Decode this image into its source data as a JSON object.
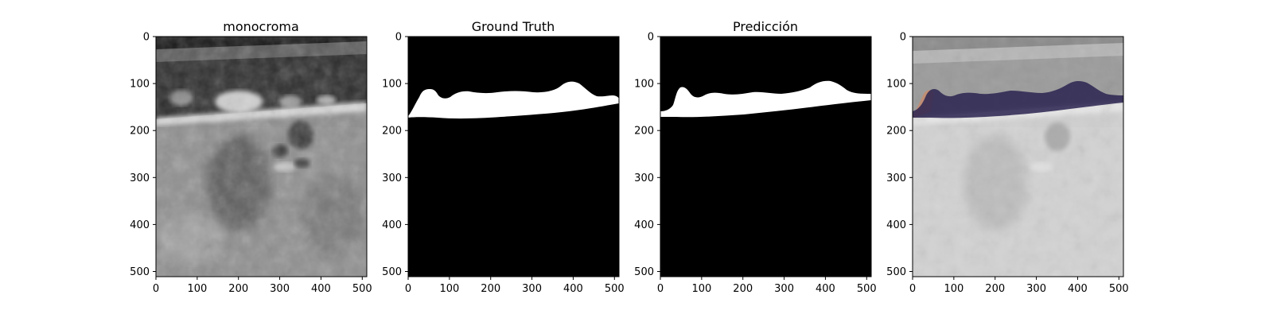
{
  "panels": [
    {
      "id": "monochrome",
      "title": "monocroma"
    },
    {
      "id": "ground-truth",
      "title": "Ground Truth"
    },
    {
      "id": "prediction",
      "title": "Predicción"
    },
    {
      "id": "overlay",
      "title": ""
    }
  ],
  "axes": {
    "x_ticks": [
      0,
      100,
      200,
      300,
      400,
      500
    ],
    "y_ticks": [
      0,
      100,
      200,
      300,
      400,
      500
    ],
    "x_range": [
      0,
      511
    ],
    "y_range": [
      0,
      511
    ],
    "y_inverted": true
  },
  "colors": {
    "mask_foreground": "#ffffff",
    "mask_background": "#000000",
    "overlay_fill": "#2a2350",
    "overlay_edge": "#c98a6a"
  }
}
